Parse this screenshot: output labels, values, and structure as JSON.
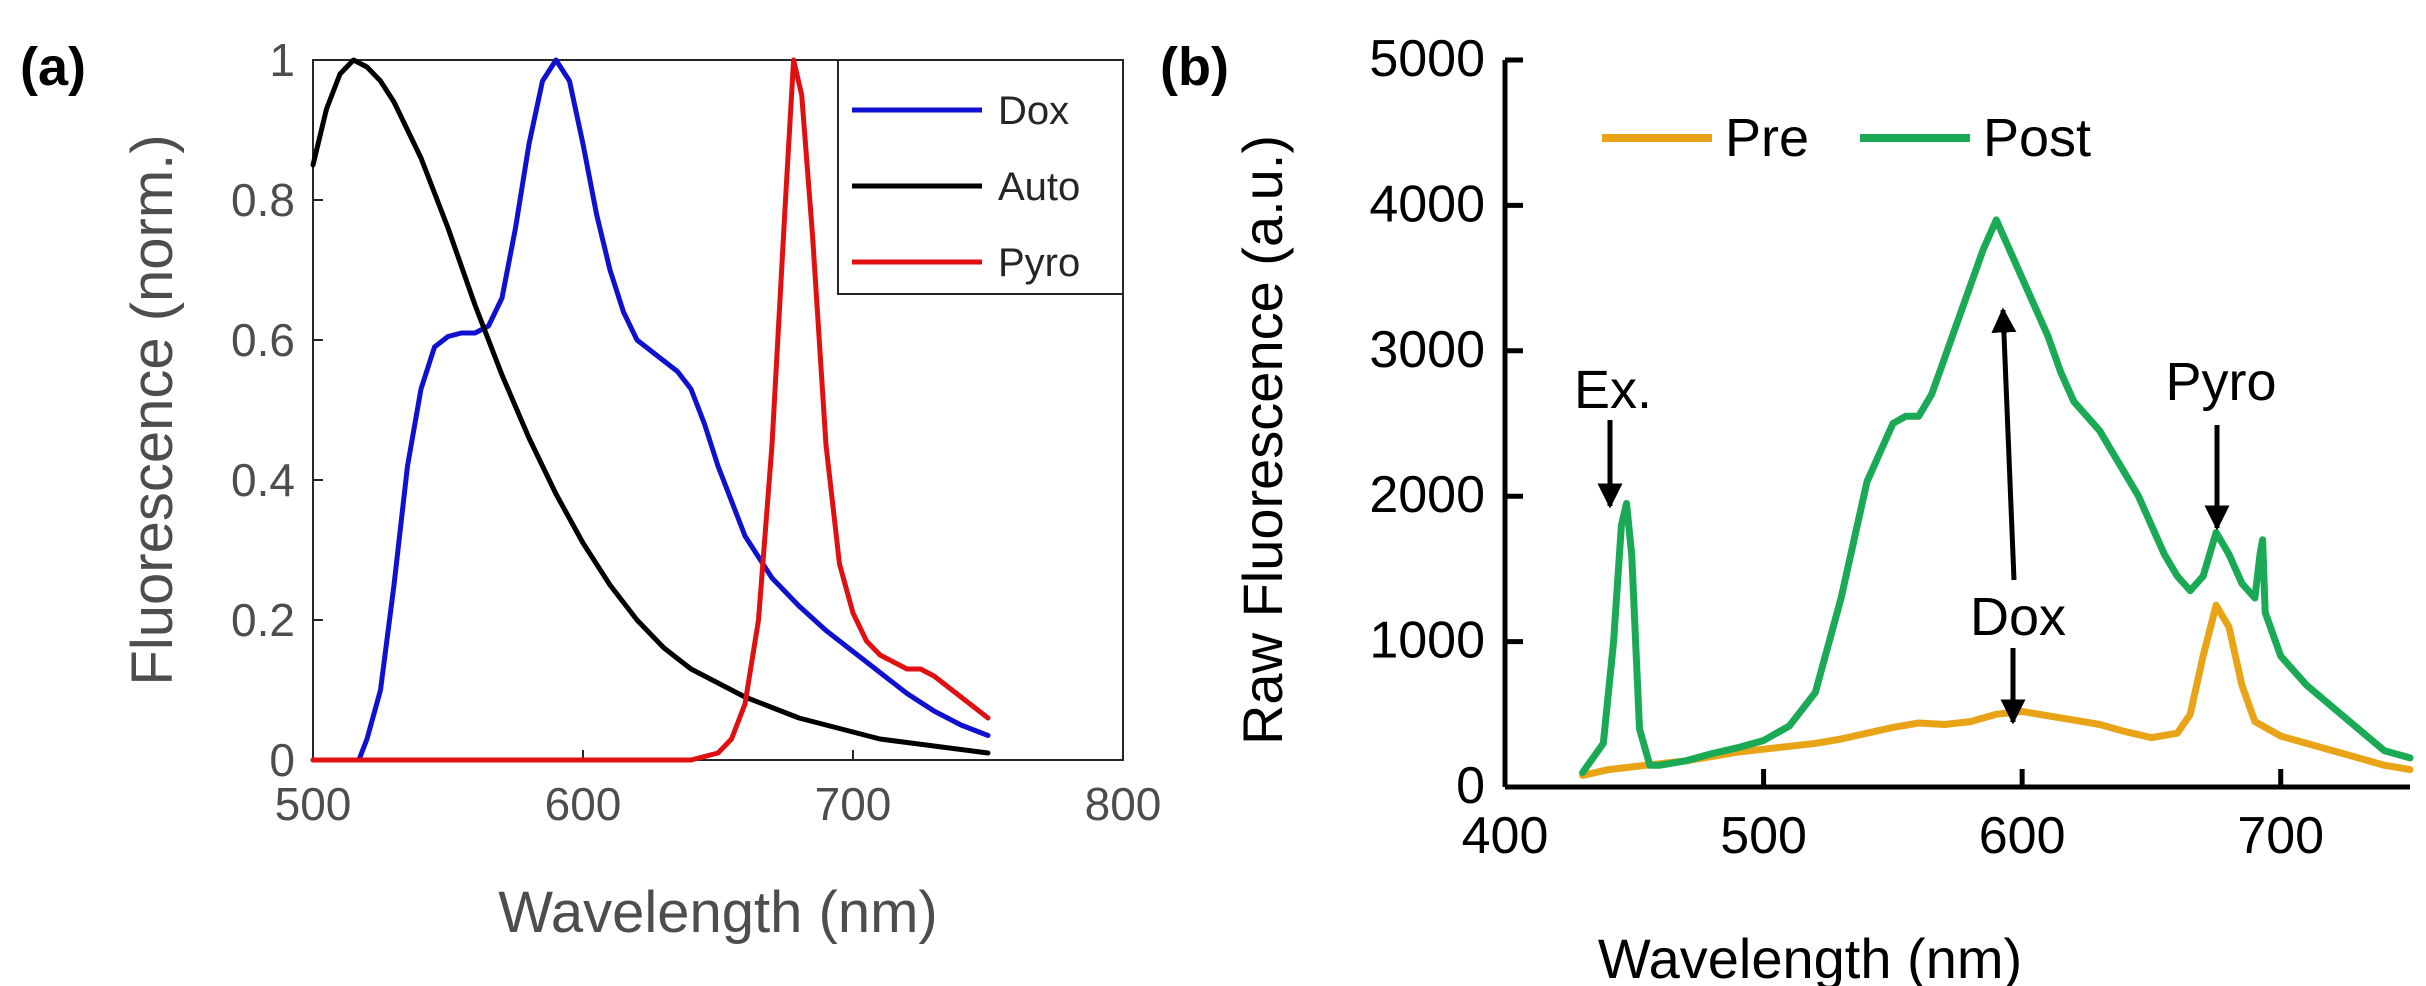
{
  "chart_data": [
    {
      "panel": "(a)",
      "type": "line",
      "xlabel": "Wavelength (nm)",
      "ylabel": "Fluorescence (norm.)",
      "xlim": [
        500,
        800
      ],
      "ylim": [
        0,
        1
      ],
      "xticks": [
        500,
        600,
        700,
        800
      ],
      "yticks": [
        0,
        0.2,
        0.4,
        0.6,
        0.8,
        1
      ],
      "legend_position": "top-right",
      "series": [
        {
          "name": "Dox",
          "color": "#1010d0",
          "x": [
            500,
            517,
            518,
            520,
            525,
            530,
            535,
            540,
            545,
            550,
            555,
            560,
            565,
            570,
            575,
            580,
            585,
            590,
            595,
            600,
            605,
            610,
            615,
            620,
            625,
            630,
            635,
            640,
            645,
            650,
            660,
            670,
            680,
            690,
            700,
            710,
            720,
            730,
            740,
            750
          ],
          "y": [
            0,
            0,
            0.01,
            0.03,
            0.1,
            0.25,
            0.42,
            0.53,
            0.59,
            0.605,
            0.61,
            0.61,
            0.62,
            0.66,
            0.76,
            0.88,
            0.97,
            1.0,
            0.97,
            0.88,
            0.78,
            0.7,
            0.64,
            0.6,
            0.585,
            0.57,
            0.555,
            0.53,
            0.48,
            0.42,
            0.32,
            0.26,
            0.22,
            0.185,
            0.155,
            0.125,
            0.095,
            0.07,
            0.05,
            0.035
          ]
        },
        {
          "name": "Auto",
          "color": "#000000",
          "x": [
            500,
            505,
            510,
            515,
            520,
            525,
            530,
            540,
            550,
            560,
            570,
            580,
            590,
            600,
            610,
            620,
            630,
            640,
            650,
            660,
            670,
            680,
            690,
            700,
            710,
            720,
            730,
            740,
            750
          ],
          "y": [
            0.85,
            0.93,
            0.98,
            1.0,
            0.99,
            0.97,
            0.94,
            0.86,
            0.76,
            0.65,
            0.55,
            0.46,
            0.38,
            0.31,
            0.25,
            0.2,
            0.16,
            0.13,
            0.11,
            0.09,
            0.075,
            0.06,
            0.05,
            0.04,
            0.03,
            0.025,
            0.02,
            0.015,
            0.01
          ]
        },
        {
          "name": "Pyro",
          "color": "#e01010",
          "x": [
            500,
            640,
            650,
            655,
            660,
            665,
            670,
            675,
            678,
            681,
            685,
            690,
            695,
            700,
            705,
            710,
            720,
            725,
            730,
            740,
            750
          ],
          "y": [
            0,
            0,
            0.01,
            0.03,
            0.08,
            0.2,
            0.45,
            0.8,
            1.0,
            0.95,
            0.75,
            0.45,
            0.28,
            0.21,
            0.17,
            0.15,
            0.13,
            0.13,
            0.12,
            0.09,
            0.06
          ]
        }
      ]
    },
    {
      "panel": "(b)",
      "type": "line",
      "xlabel": "Wavelength (nm)",
      "ylabel": "Raw Fluorescence (a.u.)",
      "xlim": [
        400,
        750
      ],
      "ylim": [
        0,
        5000
      ],
      "xticks": [
        400,
        500,
        600,
        700
      ],
      "yticks": [
        0,
        1000,
        2000,
        3000,
        4000,
        5000
      ],
      "legend_position": "top-left",
      "series": [
        {
          "name": "Pre",
          "color": "#e8a317",
          "x": [
            430,
            440,
            450,
            460,
            470,
            480,
            490,
            500,
            510,
            520,
            530,
            540,
            550,
            560,
            570,
            580,
            590,
            600,
            610,
            620,
            630,
            640,
            650,
            660,
            665,
            670,
            675,
            680,
            685,
            690,
            700,
            710,
            720,
            730,
            740,
            750
          ],
          "y": [
            80,
            120,
            140,
            160,
            180,
            210,
            240,
            260,
            280,
            300,
            330,
            370,
            410,
            440,
            430,
            450,
            500,
            520,
            490,
            460,
            430,
            380,
            340,
            370,
            500,
            900,
            1250,
            1100,
            700,
            450,
            350,
            300,
            250,
            200,
            150,
            120
          ]
        },
        {
          "name": "Post",
          "color": "#1aaa55",
          "x": [
            430,
            438,
            442,
            445,
            447,
            449,
            452,
            456,
            460,
            470,
            480,
            490,
            500,
            510,
            520,
            530,
            540,
            550,
            555,
            560,
            565,
            570,
            575,
            580,
            585,
            590,
            595,
            600,
            605,
            610,
            615,
            620,
            625,
            630,
            635,
            640,
            645,
            650,
            655,
            660,
            665,
            670,
            675,
            680,
            685,
            690,
            692,
            693,
            694,
            696,
            700,
            710,
            720,
            730,
            740,
            750
          ],
          "y": [
            100,
            300,
            1000,
            1800,
            1950,
            1600,
            400,
            150,
            150,
            180,
            230,
            270,
            320,
            420,
            650,
            1300,
            2100,
            2500,
            2550,
            2550,
            2700,
            2950,
            3200,
            3450,
            3700,
            3900,
            3700,
            3500,
            3300,
            3100,
            2850,
            2650,
            2550,
            2450,
            2300,
            2150,
            2000,
            1800,
            1600,
            1450,
            1350,
            1450,
            1750,
            1600,
            1400,
            1300,
            1600,
            1700,
            1200,
            1100,
            900,
            700,
            550,
            400,
            250,
            200
          ]
        }
      ],
      "annotations": [
        "Ex.",
        "Dox",
        "Pyro"
      ]
    }
  ]
}
